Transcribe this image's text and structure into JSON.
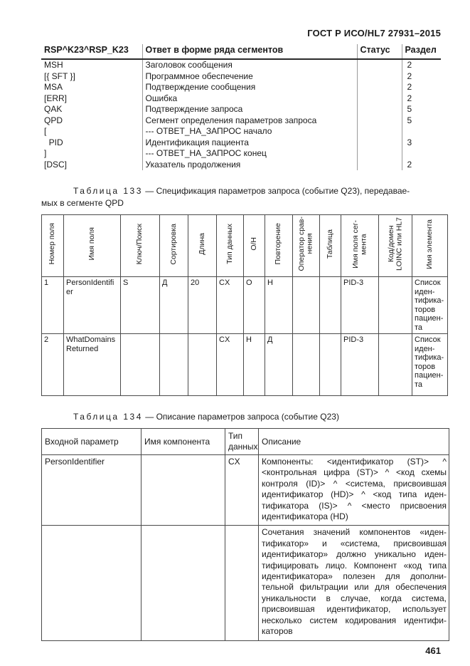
{
  "doc": {
    "header": "ГОСТ Р ИСО/HL7 27931–2015",
    "page_number": "461"
  },
  "segment_table": {
    "col_headers": [
      "RSP^K23^RSP_K23",
      "Ответ в форме ряда сегментов",
      "Статус",
      "Раздел"
    ],
    "rows": [
      {
        "seg": "MSH",
        "desc": "Заголовок сообщения",
        "status": "",
        "sec": "2"
      },
      {
        "seg": "[{ SFT }]",
        "desc": "Программное обеспечение",
        "status": "",
        "sec": "2"
      },
      {
        "seg": "MSA",
        "desc": "Подтверждение сообщения",
        "status": "",
        "sec": "2"
      },
      {
        "seg": "[ERR]",
        "desc": "Ошибка",
        "status": "",
        "sec": "2"
      },
      {
        "seg": "QAK",
        "desc": "Подтверждение запроса",
        "status": "",
        "sec": "5"
      },
      {
        "seg": "QPD",
        "desc": "Сегмент определения параметров запроса",
        "status": "",
        "sec": "5"
      },
      {
        "seg": "[",
        "desc": "--- ОТВЕТ_НА_ЗАПРОС начало",
        "status": "",
        "sec": ""
      },
      {
        "seg": "  PID",
        "desc": "Идентификация пациента",
        "status": "",
        "sec": "3"
      },
      {
        "seg": "]",
        "desc": "--- ОТВЕТ_НА_ЗАПРОС конец",
        "status": "",
        "sec": ""
      },
      {
        "seg": "[DSC]",
        "desc": "Указатель продолжения",
        "status": "",
        "sec": "2"
      }
    ]
  },
  "table133": {
    "caption_label": "Таблица 133",
    "caption_text": "— Спецификация параметров запроса (событие Q23), передавае-\nмых в сегменте QPD",
    "col_headers": [
      "Номер поля",
      "Имя поля",
      "Ключ/Поиск",
      "Сортировка",
      "Длина",
      "Тип данных",
      "О/Н",
      "Повторение",
      "Оператор срав-\nнения",
      "Таблица",
      "Имя поля сег-\nмента",
      "Код/домен\nLOINC или HL7",
      "Имя элемента"
    ],
    "rows": [
      {
        "num": "1",
        "name": "PersonIdentifier",
        "key": "S",
        "sort": "Д",
        "len": "20",
        "type": "CX",
        "opt": "О",
        "rep": "Н",
        "cmp": "",
        "tbl": "",
        "seg": "PID-3",
        "code": "",
        "elem": "Список\nиден-\nтифика-\nторов\nпациен-\nта"
      },
      {
        "num": "2",
        "name": "WhatDomainsReturned",
        "key": "",
        "sort": "",
        "len": "",
        "type": "CX",
        "opt": "Н",
        "rep": "Д",
        "cmp": "",
        "tbl": "",
        "seg": "PID-3",
        "code": "",
        "elem": "Список\nиден-\nтифика-\nторов\nпациен-\nта"
      }
    ]
  },
  "table134": {
    "caption_label": "Таблица 134",
    "caption_text": "— Описание параметров запроса (событие Q23)",
    "col_headers": [
      "Входной параметр",
      "Имя компонента",
      "Тип\nданных",
      "Описание"
    ],
    "rows": [
      {
        "param": "PersonIdentifier",
        "component": "",
        "type": "CX",
        "description": "Компоненты: <идентификатор (ST)> ^\n<контрольная цифра (ST)> ^ <код схемы\nконтроля (ID)> ^ <система, присвоившая\nидентификатор (HD)> ^ <код типа иден-\nтификатора (IS)> ^ <место присвоения\nидентификатора (HD)"
      },
      {
        "param": "",
        "component": "",
        "type": "",
        "description": "Сочетания значений компонентов «иден-\nтификатор» и «система, присвоившая\nидентификатор» должно уникально иден-\nтифицировать лицо. Компонент «код типа\nидентификатора» полезен для дополни-\nтельной фильтрации или для обеспечения\nуникальности в случае, когда система,\nприсвоившая идентификатор, использует\nнесколько систем кодирования идентифи-\nкаторов"
      }
    ]
  }
}
